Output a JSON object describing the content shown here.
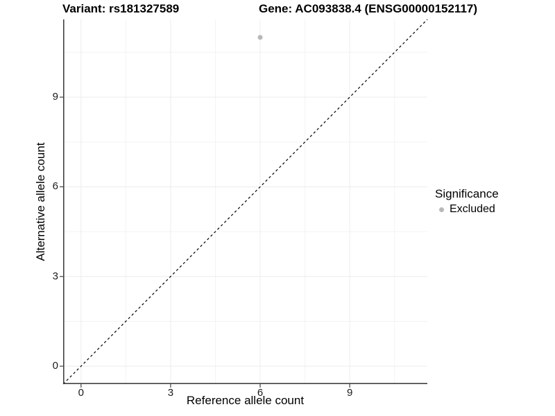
{
  "chart_data": {
    "type": "scatter",
    "titles": {
      "left": "Variant: rs181327589",
      "right": "Gene: AC093838.4 (ENSG00000152117)"
    },
    "xlabel": "Reference allele count",
    "ylabel": "Alternative allele count",
    "xlim": [
      -0.6,
      11.6
    ],
    "ylim": [
      -0.6,
      11.6
    ],
    "x_ticks": [
      0,
      3,
      6,
      9
    ],
    "y_ticks": [
      0,
      3,
      6,
      9
    ],
    "x_minor_ticks": [
      1.5,
      4.5,
      7.5,
      10.5
    ],
    "y_minor_ticks": [
      1.5,
      4.5,
      7.5,
      10.5
    ],
    "grid": true,
    "points": [
      {
        "x": 6,
        "y": 11,
        "series": "Excluded"
      }
    ],
    "identity_line": {
      "style": "dashed",
      "slope": 1,
      "intercept": 0
    },
    "legend": {
      "title": "Significance",
      "position": "right",
      "items": [
        {
          "label": "Excluded",
          "color": "#b8b8b8"
        }
      ]
    },
    "colors": {
      "point": "#b8b8b8",
      "grid_major": "#ececec",
      "grid_minor": "#f3f3f3",
      "axis_line": "#404040",
      "identity_line": "#000000",
      "tick_label": "#1a1a1a",
      "title": "#000000",
      "background": "#ffffff"
    }
  }
}
